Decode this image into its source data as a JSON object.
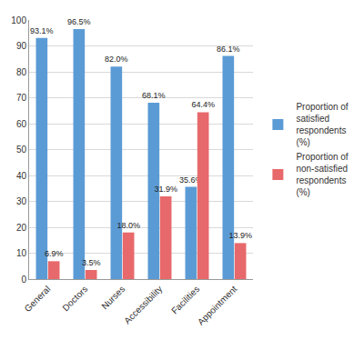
{
  "chart_data": {
    "type": "bar",
    "categories": [
      "General",
      "Doctors",
      "Nurses",
      "Accessibility",
      "Facilities",
      "Appointment"
    ],
    "series": [
      {
        "name": "Proportion of satisfied respondents (%)",
        "color": "#5b9bd5",
        "values": [
          93.1,
          96.5,
          82.0,
          68.1,
          35.6,
          86.1
        ],
        "value_labels": [
          "93.1%",
          "96.5%",
          "82.0%",
          "68.1%",
          "35.6%",
          "86.1%"
        ]
      },
      {
        "name": "Proportion of non-satisfied respondents (%)",
        "color": "#e8696b",
        "values": [
          6.9,
          3.5,
          18.0,
          31.9,
          64.4,
          13.9
        ],
        "value_labels": [
          "6.9%",
          "3.5%",
          "18.0%",
          "31.9%",
          "64.4%",
          "13.9%"
        ]
      }
    ],
    "ylim": [
      0,
      100
    ],
    "yticks": [
      0,
      10,
      20,
      30,
      40,
      50,
      60,
      70,
      80,
      90,
      100
    ],
    "grid": true,
    "legend": "right",
    "data_labels": true
  }
}
